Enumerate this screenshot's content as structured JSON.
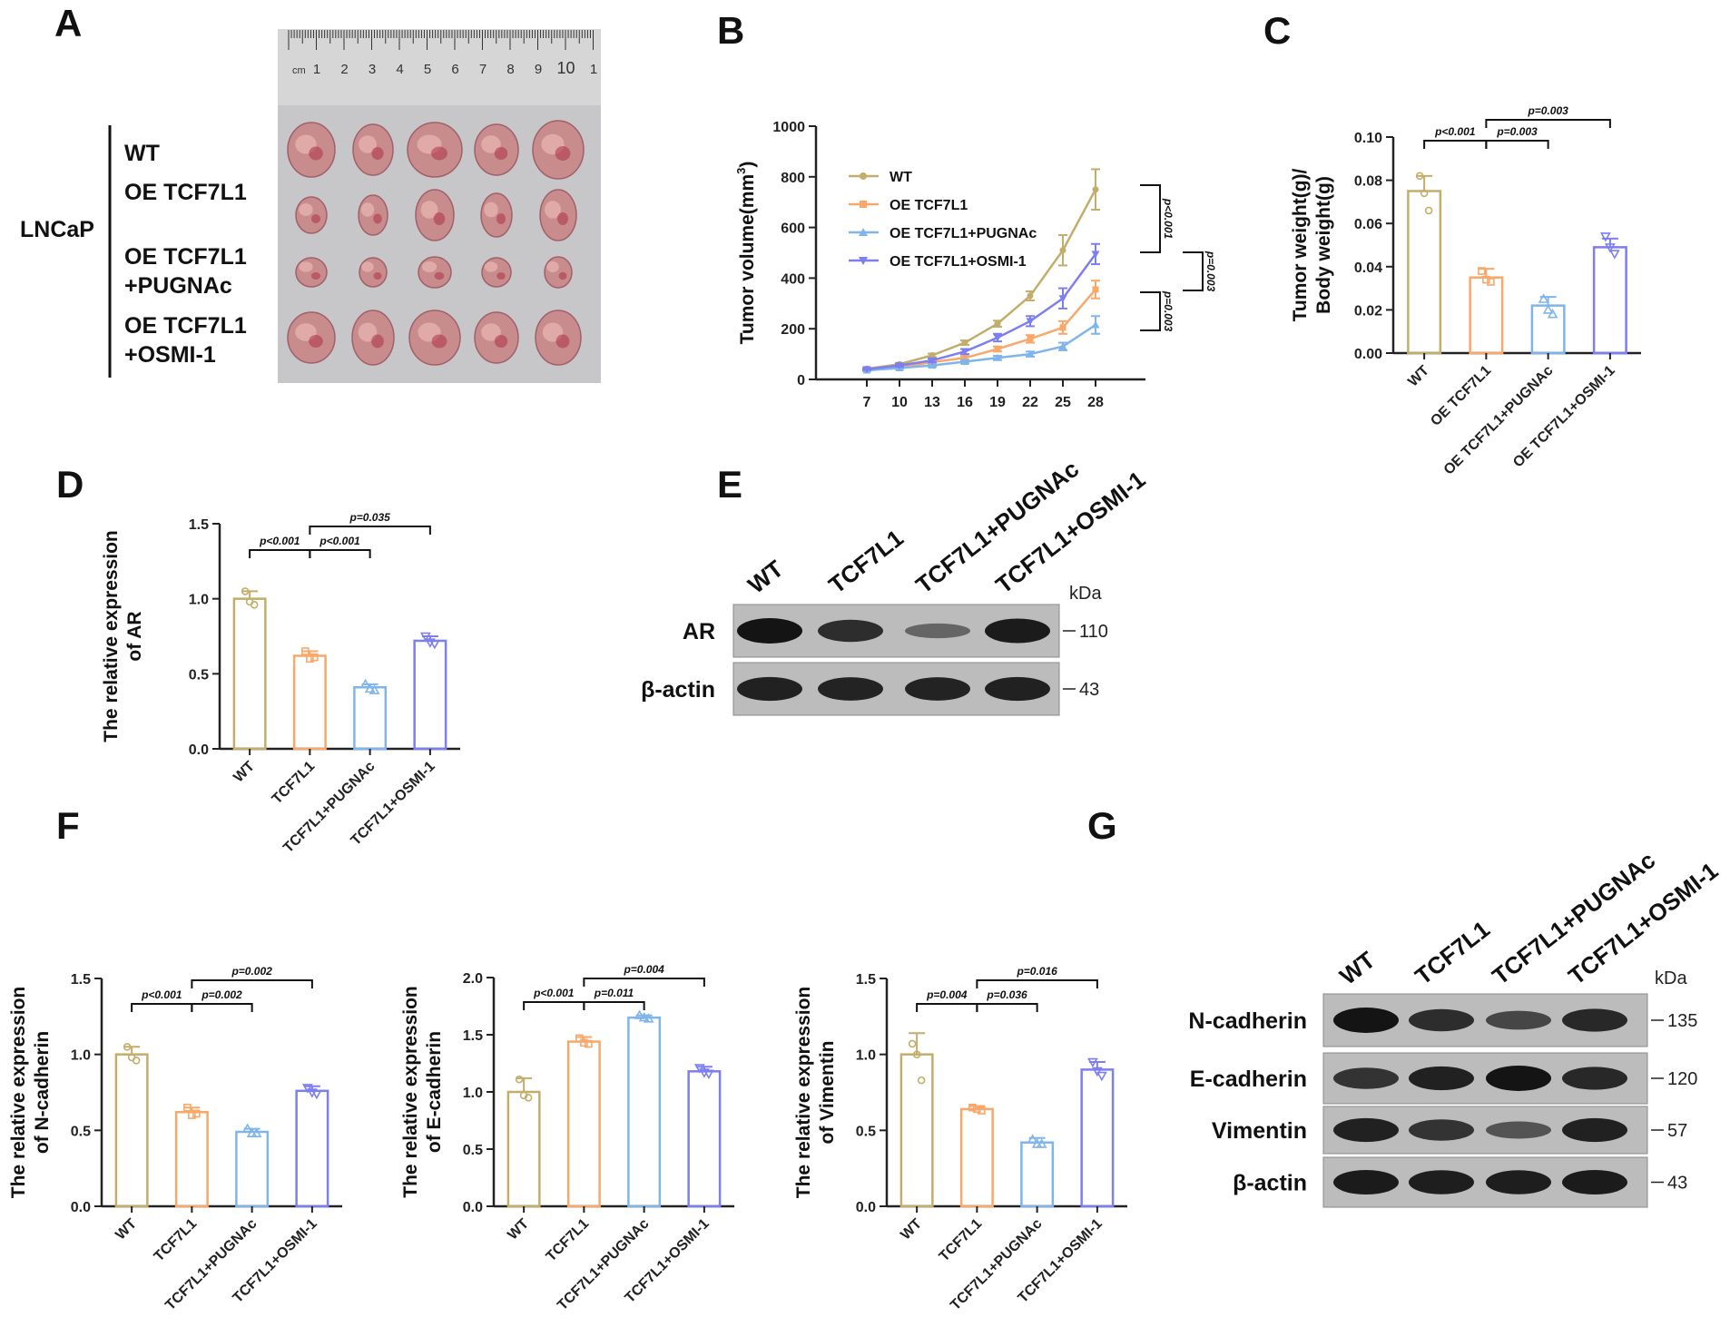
{
  "colors": {
    "wt": "#c2ad6b",
    "tcf7l1": "#f9a86a",
    "pugnac": "#7fb5ea",
    "osmi": "#7d7ef0",
    "axis": "#222222",
    "ruler_bg": "#d6d6d6",
    "photo_bg": "#c7c7c9",
    "tumor": "#c98c8c",
    "blot_bg": "#bcbcbc",
    "band": "#141414"
  },
  "panelA": {
    "label": "A",
    "cell_line": "LNCaP",
    "groups": [
      "WT",
      "OE TCF7L1",
      "OE TCF7L1",
      "+PUGNAc",
      "OE TCF7L1",
      "+OSMI-1"
    ],
    "ruler_unit": "cm",
    "ruler_numbers": [
      "1",
      "2",
      "3",
      "4",
      "5",
      "6",
      "7",
      "8",
      "9",
      "10",
      "1"
    ]
  },
  "panelB": {
    "label": "B",
    "significance": [
      "p<0.001",
      "p=0.003",
      "p=0.003"
    ]
  },
  "panelC": {
    "label": "C",
    "significance": [
      {
        "text": "p<0.001",
        "from": 0,
        "to": 1
      },
      {
        "text": "p=0.003",
        "from": 1,
        "to": 2
      },
      {
        "text": "p=0.003",
        "from": 1,
        "to": 3
      }
    ]
  },
  "panelD": {
    "label": "D",
    "significance": [
      {
        "text": "p<0.001",
        "from": 0,
        "to": 1
      },
      {
        "text": "p<0.001",
        "from": 1,
        "to": 2
      },
      {
        "text": "p=0.035",
        "from": 1,
        "to": 3
      }
    ]
  },
  "panelE": {
    "label": "E",
    "lanes": [
      "WT",
      "TCF7L1",
      "TCF7L1+PUGNAc",
      "TCF7L1+OSMI-1"
    ],
    "kda_label": "kDa",
    "blots": [
      {
        "name": "AR",
        "kda": "110",
        "intensity": [
          1.0,
          0.8,
          0.35,
          0.95
        ]
      },
      {
        "name": "β-actin",
        "kda": "43",
        "intensity": [
          0.9,
          0.88,
          0.88,
          0.9
        ]
      }
    ]
  },
  "panelF": {
    "label": "F",
    "significance_ncad": [
      {
        "text": "p<0.001",
        "from": 0,
        "to": 1
      },
      {
        "text": "p=0.002",
        "from": 1,
        "to": 2
      },
      {
        "text": "p=0.002",
        "from": 1,
        "to": 3
      }
    ],
    "significance_ecad": [
      {
        "text": "p<0.001",
        "from": 0,
        "to": 1
      },
      {
        "text": "p=0.011",
        "from": 1,
        "to": 2
      },
      {
        "text": "p=0.004",
        "from": 1,
        "to": 3
      }
    ],
    "significance_vim": [
      {
        "text": "p=0.004",
        "from": 0,
        "to": 1
      },
      {
        "text": "p=0.036",
        "from": 1,
        "to": 2
      },
      {
        "text": "p=0.016",
        "from": 1,
        "to": 3
      }
    ]
  },
  "panelG": {
    "label": "G",
    "lanes": [
      "WT",
      "TCF7L1",
      "TCF7L1+PUGNAc",
      "TCF7L1+OSMI-1"
    ],
    "kda_label": "kDa",
    "blots": [
      {
        "name": "N-cadherin",
        "kda": "135",
        "intensity": [
          1.0,
          0.8,
          0.6,
          0.85
        ]
      },
      {
        "name": "E-cadherin",
        "kda": "120",
        "intensity": [
          0.75,
          0.9,
          1.0,
          0.85
        ]
      },
      {
        "name": "Vimentin",
        "kda": "57",
        "intensity": [
          0.9,
          0.75,
          0.5,
          0.9
        ]
      },
      {
        "name": "β-actin",
        "kda": "43",
        "intensity": [
          0.95,
          0.92,
          0.92,
          0.95
        ]
      }
    ]
  },
  "chart_data": [
    {
      "id": "B",
      "type": "line",
      "title": "",
      "xlabel": "",
      "ylabel": "Tumor volume(mm3)",
      "ylabel_parts": [
        "Tumor volume(mm",
        "3",
        ")"
      ],
      "x": [
        7,
        10,
        13,
        16,
        19,
        22,
        25,
        28
      ],
      "x_tick_labels": [
        "7",
        "10",
        "13",
        "16",
        "19",
        "22",
        "25",
        "28"
      ],
      "ylim": [
        0,
        1000
      ],
      "y_ticks": [
        0,
        200,
        400,
        600,
        800,
        1000
      ],
      "y_tick_labels": [
        "0",
        "200",
        "400",
        "600",
        "800",
        "1000"
      ],
      "legend_position": "upper-left",
      "series": [
        {
          "name": "WT",
          "color_key": "wt",
          "marker": "circle",
          "values": [
            42,
            60,
            95,
            145,
            220,
            330,
            510,
            750
          ],
          "errors": [
            4,
            5,
            7,
            9,
            12,
            18,
            60,
            80
          ]
        },
        {
          "name": "OE TCF7L1",
          "color_key": "tcf7l1",
          "marker": "square",
          "values": [
            38,
            48,
            68,
            85,
            120,
            160,
            205,
            355
          ],
          "errors": [
            3,
            4,
            6,
            7,
            10,
            15,
            25,
            35
          ]
        },
        {
          "name": "OE TCF7L1+PUGNAc",
          "color_key": "pugnac",
          "marker": "triangle",
          "values": [
            36,
            45,
            55,
            70,
            85,
            100,
            130,
            215
          ],
          "errors": [
            3,
            4,
            5,
            6,
            8,
            10,
            15,
            35
          ]
        },
        {
          "name": "OE TCF7L1+OSMI-1",
          "color_key": "osmi",
          "marker": "triangle-down",
          "values": [
            40,
            55,
            75,
            110,
            165,
            230,
            320,
            495
          ],
          "errors": [
            3,
            5,
            7,
            10,
            15,
            20,
            40,
            40
          ]
        }
      ]
    },
    {
      "id": "C",
      "type": "bar",
      "ylabel": "Tumor weight(g)/ Body weight(g)",
      "ylabel_lines": [
        "Tumor weight(g)/",
        "Body weight(g)"
      ],
      "categories": [
        "WT",
        "OE TCF7L1",
        "OE TCF7L1+PUGNAc",
        "OE TCF7L1+OSMI-1"
      ],
      "ylim": [
        0,
        0.1
      ],
      "y_ticks": [
        0,
        0.02,
        0.04,
        0.06,
        0.08,
        0.1
      ],
      "y_tick_labels": [
        "0.00",
        "0.02",
        "0.04",
        "0.06",
        "0.08",
        "0.10"
      ],
      "values": [
        0.075,
        0.035,
        0.022,
        0.049
      ],
      "errors": [
        0.007,
        0.004,
        0.004,
        0.004
      ],
      "points": [
        [
          0.082,
          0.074,
          0.066
        ],
        [
          0.038,
          0.034,
          0.033
        ],
        [
          0.025,
          0.02,
          0.018
        ],
        [
          0.054,
          0.049,
          0.046
        ]
      ]
    },
    {
      "id": "D",
      "type": "bar",
      "ylabel": "The relative expression of AR",
      "ylabel_lines": [
        "The relative expression",
        "of AR"
      ],
      "categories": [
        "WT",
        "TCF7L1",
        "TCF7L1+PUGNAc",
        "TCF7L1+OSMI-1"
      ],
      "ylim": [
        0,
        1.5
      ],
      "y_ticks": [
        0,
        0.5,
        1.0,
        1.5
      ],
      "y_tick_labels": [
        "0.0",
        "0.5",
        "1.0",
        "1.5"
      ],
      "values": [
        1.0,
        0.62,
        0.41,
        0.72
      ],
      "errors": [
        0.05,
        0.03,
        0.02,
        0.03
      ],
      "points": [
        [
          1.05,
          0.98,
          0.96
        ],
        [
          0.65,
          0.6,
          0.61
        ],
        [
          0.43,
          0.4,
          0.39
        ],
        [
          0.75,
          0.71,
          0.7
        ]
      ]
    },
    {
      "id": "F1",
      "type": "bar",
      "ylabel": "The relative expression of N-cadherin",
      "ylabel_lines": [
        "The relative expression",
        "of N-cadherin"
      ],
      "categories": [
        "WT",
        "TCF7L1",
        "TCF7L1+PUGNAc",
        "TCF7L1+OSMI-1"
      ],
      "ylim": [
        0,
        1.5
      ],
      "y_ticks": [
        0,
        0.5,
        1.0,
        1.5
      ],
      "y_tick_labels": [
        "0.0",
        "0.5",
        "1.0",
        "1.5"
      ],
      "values": [
        1.0,
        0.62,
        0.49,
        0.76
      ],
      "errors": [
        0.05,
        0.03,
        0.02,
        0.03
      ],
      "points": [
        [
          1.05,
          0.98,
          0.96
        ],
        [
          0.65,
          0.6,
          0.61
        ],
        [
          0.51,
          0.48,
          0.48
        ],
        [
          0.78,
          0.75,
          0.74
        ]
      ]
    },
    {
      "id": "F2",
      "type": "bar",
      "ylabel": "The relative expression of E-cadherin",
      "ylabel_lines": [
        "The relative expression",
        "of E-cadherin"
      ],
      "categories": [
        "WT",
        "TCF7L1",
        "TCF7L1+PUGNAc",
        "TCF7L1+OSMI-1"
      ],
      "ylim": [
        0,
        2.0
      ],
      "y_ticks": [
        0,
        0.5,
        1.0,
        1.5,
        2.0
      ],
      "y_tick_labels": [
        "0.0",
        "0.5",
        "1.0",
        "1.5",
        "2.0"
      ],
      "values": [
        1.0,
        1.44,
        1.65,
        1.18
      ],
      "errors": [
        0.12,
        0.04,
        0.02,
        0.04
      ],
      "points": [
        [
          1.11,
          0.97,
          0.95
        ],
        [
          1.47,
          1.43,
          1.42
        ],
        [
          1.67,
          1.65,
          1.64
        ],
        [
          1.21,
          1.17,
          1.16
        ]
      ]
    },
    {
      "id": "F3",
      "type": "bar",
      "ylabel": "The relative expression of Vimentin",
      "ylabel_lines": [
        "The relative expression",
        "of Vimentin"
      ],
      "categories": [
        "WT",
        "TCF7L1",
        "TCF7L1+PUGNAc",
        "TCF7L1+OSMI-1"
      ],
      "ylim": [
        0,
        1.5
      ],
      "y_ticks": [
        0,
        0.5,
        1.0,
        1.5
      ],
      "y_tick_labels": [
        "0.0",
        "0.5",
        "1.0",
        "1.5"
      ],
      "values": [
        1.0,
        0.64,
        0.42,
        0.9
      ],
      "errors": [
        0.14,
        0.02,
        0.03,
        0.05
      ],
      "points": [
        [
          1.07,
          1.0,
          0.83
        ],
        [
          0.65,
          0.64,
          0.63
        ],
        [
          0.44,
          0.41,
          0.41
        ],
        [
          0.95,
          0.89,
          0.86
        ]
      ]
    }
  ]
}
